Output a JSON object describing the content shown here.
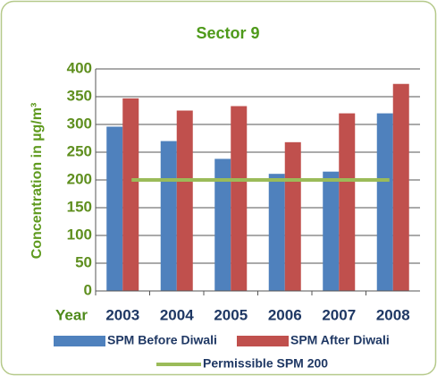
{
  "chart_data": {
    "type": "bar",
    "title": "Sector 9",
    "xlabel": "Year",
    "ylabel": "Concentration in µg/m³",
    "categories": [
      "2003",
      "2004",
      "2005",
      "2006",
      "2007",
      "2008"
    ],
    "series": [
      {
        "name": "SPM Before Diwali",
        "color": "#4f81bd",
        "values": [
          296,
          270,
          238,
          211,
          215,
          320
        ]
      },
      {
        "name": "SPM After Diwali",
        "color": "#c0504d",
        "values": [
          347,
          325,
          333,
          268,
          320,
          373
        ]
      },
      {
        "name": "Permissible SPM 200",
        "color": "#9bbb59",
        "type": "line",
        "values": [
          200,
          200,
          200,
          200,
          200,
          200
        ]
      }
    ],
    "ylim": [
      0,
      400
    ],
    "yticks": [
      0,
      50,
      100,
      150,
      200,
      250,
      300,
      350,
      400
    ],
    "grid": true
  }
}
